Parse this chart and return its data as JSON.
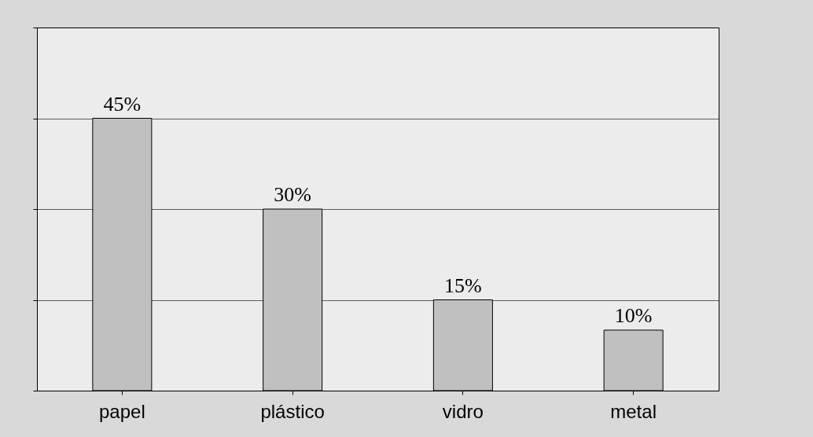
{
  "chart_data": {
    "type": "bar",
    "categories": [
      "papel",
      "plástico",
      "vidro",
      "metal"
    ],
    "values": [
      45,
      30,
      15,
      10
    ],
    "value_labels": [
      "45%",
      "30%",
      "15%",
      "10%"
    ],
    "color": "#c0c0c0",
    "ylim": [
      0,
      60
    ],
    "yticks": [
      {
        "value": 0,
        "label": null
      },
      {
        "value": 15,
        "label": null
      },
      {
        "value": 30,
        "label": null
      },
      {
        "value": 45,
        "label": null
      },
      {
        "value": 60,
        "label": null
      }
    ],
    "grid": "y"
  }
}
